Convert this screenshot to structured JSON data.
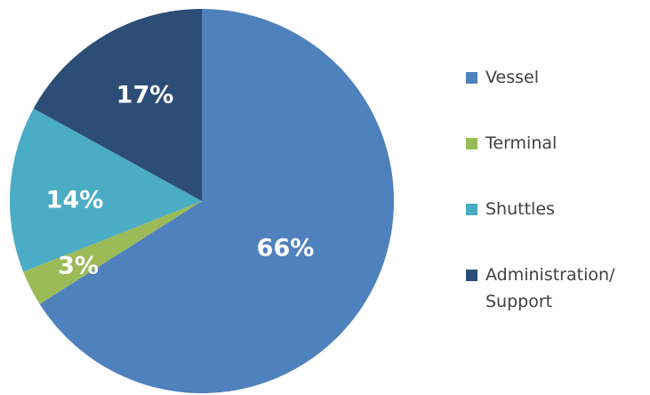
{
  "chart_data": {
    "type": "pie",
    "title": "",
    "slices": [
      {
        "label": "Vessel",
        "value": 66,
        "display": "66%",
        "color": "#4f81bd"
      },
      {
        "label": "Terminal",
        "value": 3,
        "display": "3%",
        "color": "#9bbb59"
      },
      {
        "label": "Shuttles",
        "value": 14,
        "display": "14%",
        "color": "#4bacc6"
      },
      {
        "label": "Administration/ Support",
        "value": 17,
        "display": "17%",
        "color": "#2c4d75"
      }
    ],
    "start_angle": "12 o'clock",
    "direction": "clockwise",
    "legend_position": "right"
  }
}
